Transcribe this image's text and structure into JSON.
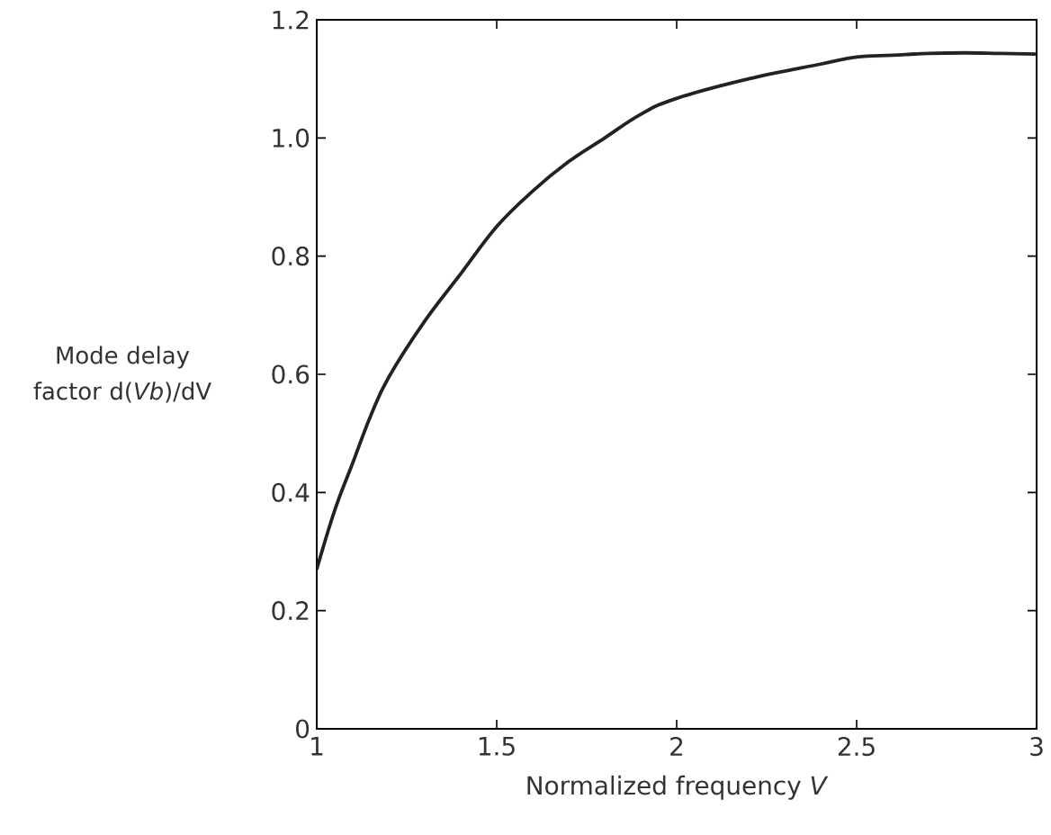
{
  "chart_data": {
    "type": "line",
    "xlabel": "Normalized frequency *V*",
    "ylabel": "Mode delay factor d(*Vb*)/dV",
    "x": [
      1,
      1.05,
      1.1,
      1.15,
      1.2,
      1.3,
      1.4,
      1.5,
      1.6,
      1.7,
      1.8,
      1.9,
      2,
      2.2,
      2.4,
      2.5,
      2.6,
      2.7,
      2.8,
      2.9,
      3
    ],
    "values": [
      0.27,
      0.37,
      0.45,
      0.53,
      0.595,
      0.69,
      0.77,
      0.85,
      0.91,
      0.96,
      1.0,
      1.04,
      1.067,
      1.1,
      1.125,
      1.137,
      1.14,
      1.143,
      1.144,
      1.143,
      1.142
    ],
    "color": "#222222",
    "xlim": [
      1,
      3
    ],
    "ylim": [
      0,
      1.2
    ],
    "xticks": [
      1,
      1.5,
      2,
      2.5,
      3
    ],
    "yticks": [
      0,
      0.2,
      0.4,
      0.6,
      0.8,
      {
        "value": 1,
        "label": "1.0"
      },
      1.2
    ]
  }
}
